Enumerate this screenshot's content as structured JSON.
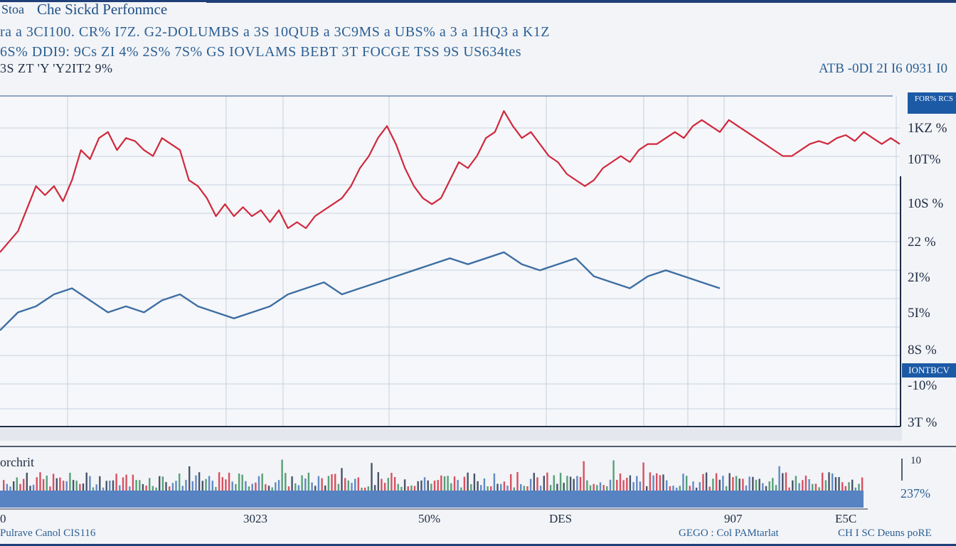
{
  "header": {
    "tag": "Stoa",
    "title": "Che Sickd Perfonmce",
    "line1": "ra a 3CI100. CR% I7Z. G2-DOLUMBS a 3S 10QUB a 3C9MS a UBS% a 3 a 1HQ3 a K1Z",
    "line2": "6S% DDI9: 9Cs ZI 4% 2S% 7S% GS IOVLAMS BEBT 3T FOCGE TSS 9S US634tes",
    "line3": "3S ZT 'Y 'Y2IT2 9%",
    "right_info": "ATB -0DI 2I I6 0931 I0"
  },
  "legend": {
    "label": "FOR% RCS"
  },
  "y_ticks": [
    "1KZ %",
    "10T%",
    "10S %",
    "22 %",
    "2I%",
    "5I%",
    "8S %",
    "-10%",
    "3T %"
  ],
  "flag_label": "IONTBCV",
  "volume": {
    "label": "orchrit",
    "right_top": "10",
    "right_bottom": "237%"
  },
  "x_ticks": [
    "0",
    "3023",
    "50%",
    "DES",
    "907",
    "E5C"
  ],
  "footer": {
    "left": "Pulrave Canol CIS116",
    "mid": "GEGO : Col PAMtarlat",
    "right": "CH I SC Deuns poRE"
  },
  "colors": {
    "red": "#d0283c",
    "blue": "#3e6fa3",
    "blue_light": "#6f8fa8",
    "grid": "#c7d0de",
    "frame": "#1f3f78",
    "bar": "#3b6fb8"
  },
  "chart_data": {
    "type": "line",
    "title": "Che Sickd Perfonmce",
    "xlabel": "",
    "ylabel": "",
    "x_range": [
      0,
      100
    ],
    "ylim": [
      -10,
      100
    ],
    "grid": true,
    "series": [
      {
        "color": "red",
        "x": [
          0,
          2,
          4,
          5,
          6,
          7,
          8,
          9,
          10,
          11,
          12,
          13,
          14,
          15,
          16,
          17,
          18,
          19,
          20,
          21,
          22,
          23,
          24,
          25,
          26,
          27,
          28,
          29,
          30,
          31,
          32,
          33,
          34,
          35,
          36,
          37,
          38,
          39,
          40,
          41,
          42,
          43,
          44,
          45,
          46,
          47,
          48,
          49,
          50,
          51,
          52,
          53,
          54,
          55,
          56,
          57,
          58,
          59,
          60,
          61,
          62,
          63,
          64,
          65,
          66,
          67,
          68,
          69,
          70,
          71,
          72,
          73,
          74,
          75,
          76,
          77,
          78,
          79,
          80,
          81,
          82,
          83,
          84,
          85,
          86,
          87,
          88,
          89,
          90,
          91,
          92,
          93,
          94,
          95,
          96,
          97,
          98,
          99,
          100
        ],
        "y": [
          48,
          55,
          70,
          67,
          70,
          65,
          72,
          82,
          79,
          86,
          88,
          82,
          86,
          85,
          82,
          80,
          86,
          84,
          82,
          72,
          70,
          66,
          60,
          64,
          60,
          63,
          60,
          62,
          58,
          62,
          56,
          58,
          56,
          60,
          62,
          64,
          66,
          70,
          76,
          80,
          86,
          90,
          84,
          76,
          70,
          66,
          64,
          66,
          72,
          78,
          76,
          80,
          86,
          88,
          95,
          90,
          86,
          88,
          84,
          80,
          78,
          74,
          72,
          70,
          72,
          76,
          78,
          80,
          78,
          82,
          84,
          84,
          86,
          88,
          86,
          90,
          92,
          90,
          88,
          92,
          90,
          88,
          86,
          84,
          82,
          80,
          80,
          82,
          84,
          85,
          84,
          86,
          87,
          85,
          88,
          86,
          84,
          86,
          84
        ]
      },
      {
        "color": "blue",
        "x": [
          0,
          2,
          4,
          6,
          8,
          10,
          12,
          14,
          16,
          18,
          20,
          22,
          24,
          26,
          28,
          30,
          32,
          34,
          36,
          38,
          40,
          42,
          44,
          46,
          48,
          50,
          52,
          54,
          56,
          58,
          60,
          62,
          64,
          66,
          68,
          70,
          72,
          74,
          76,
          78,
          80
        ],
        "y": [
          22,
          28,
          30,
          34,
          36,
          32,
          28,
          30,
          28,
          32,
          34,
          30,
          28,
          26,
          28,
          30,
          34,
          36,
          38,
          34,
          36,
          38,
          40,
          42,
          44,
          46,
          44,
          46,
          48,
          44,
          42,
          44,
          46,
          40,
          38,
          36,
          40,
          42,
          40,
          38,
          36
        ]
      }
    ]
  }
}
